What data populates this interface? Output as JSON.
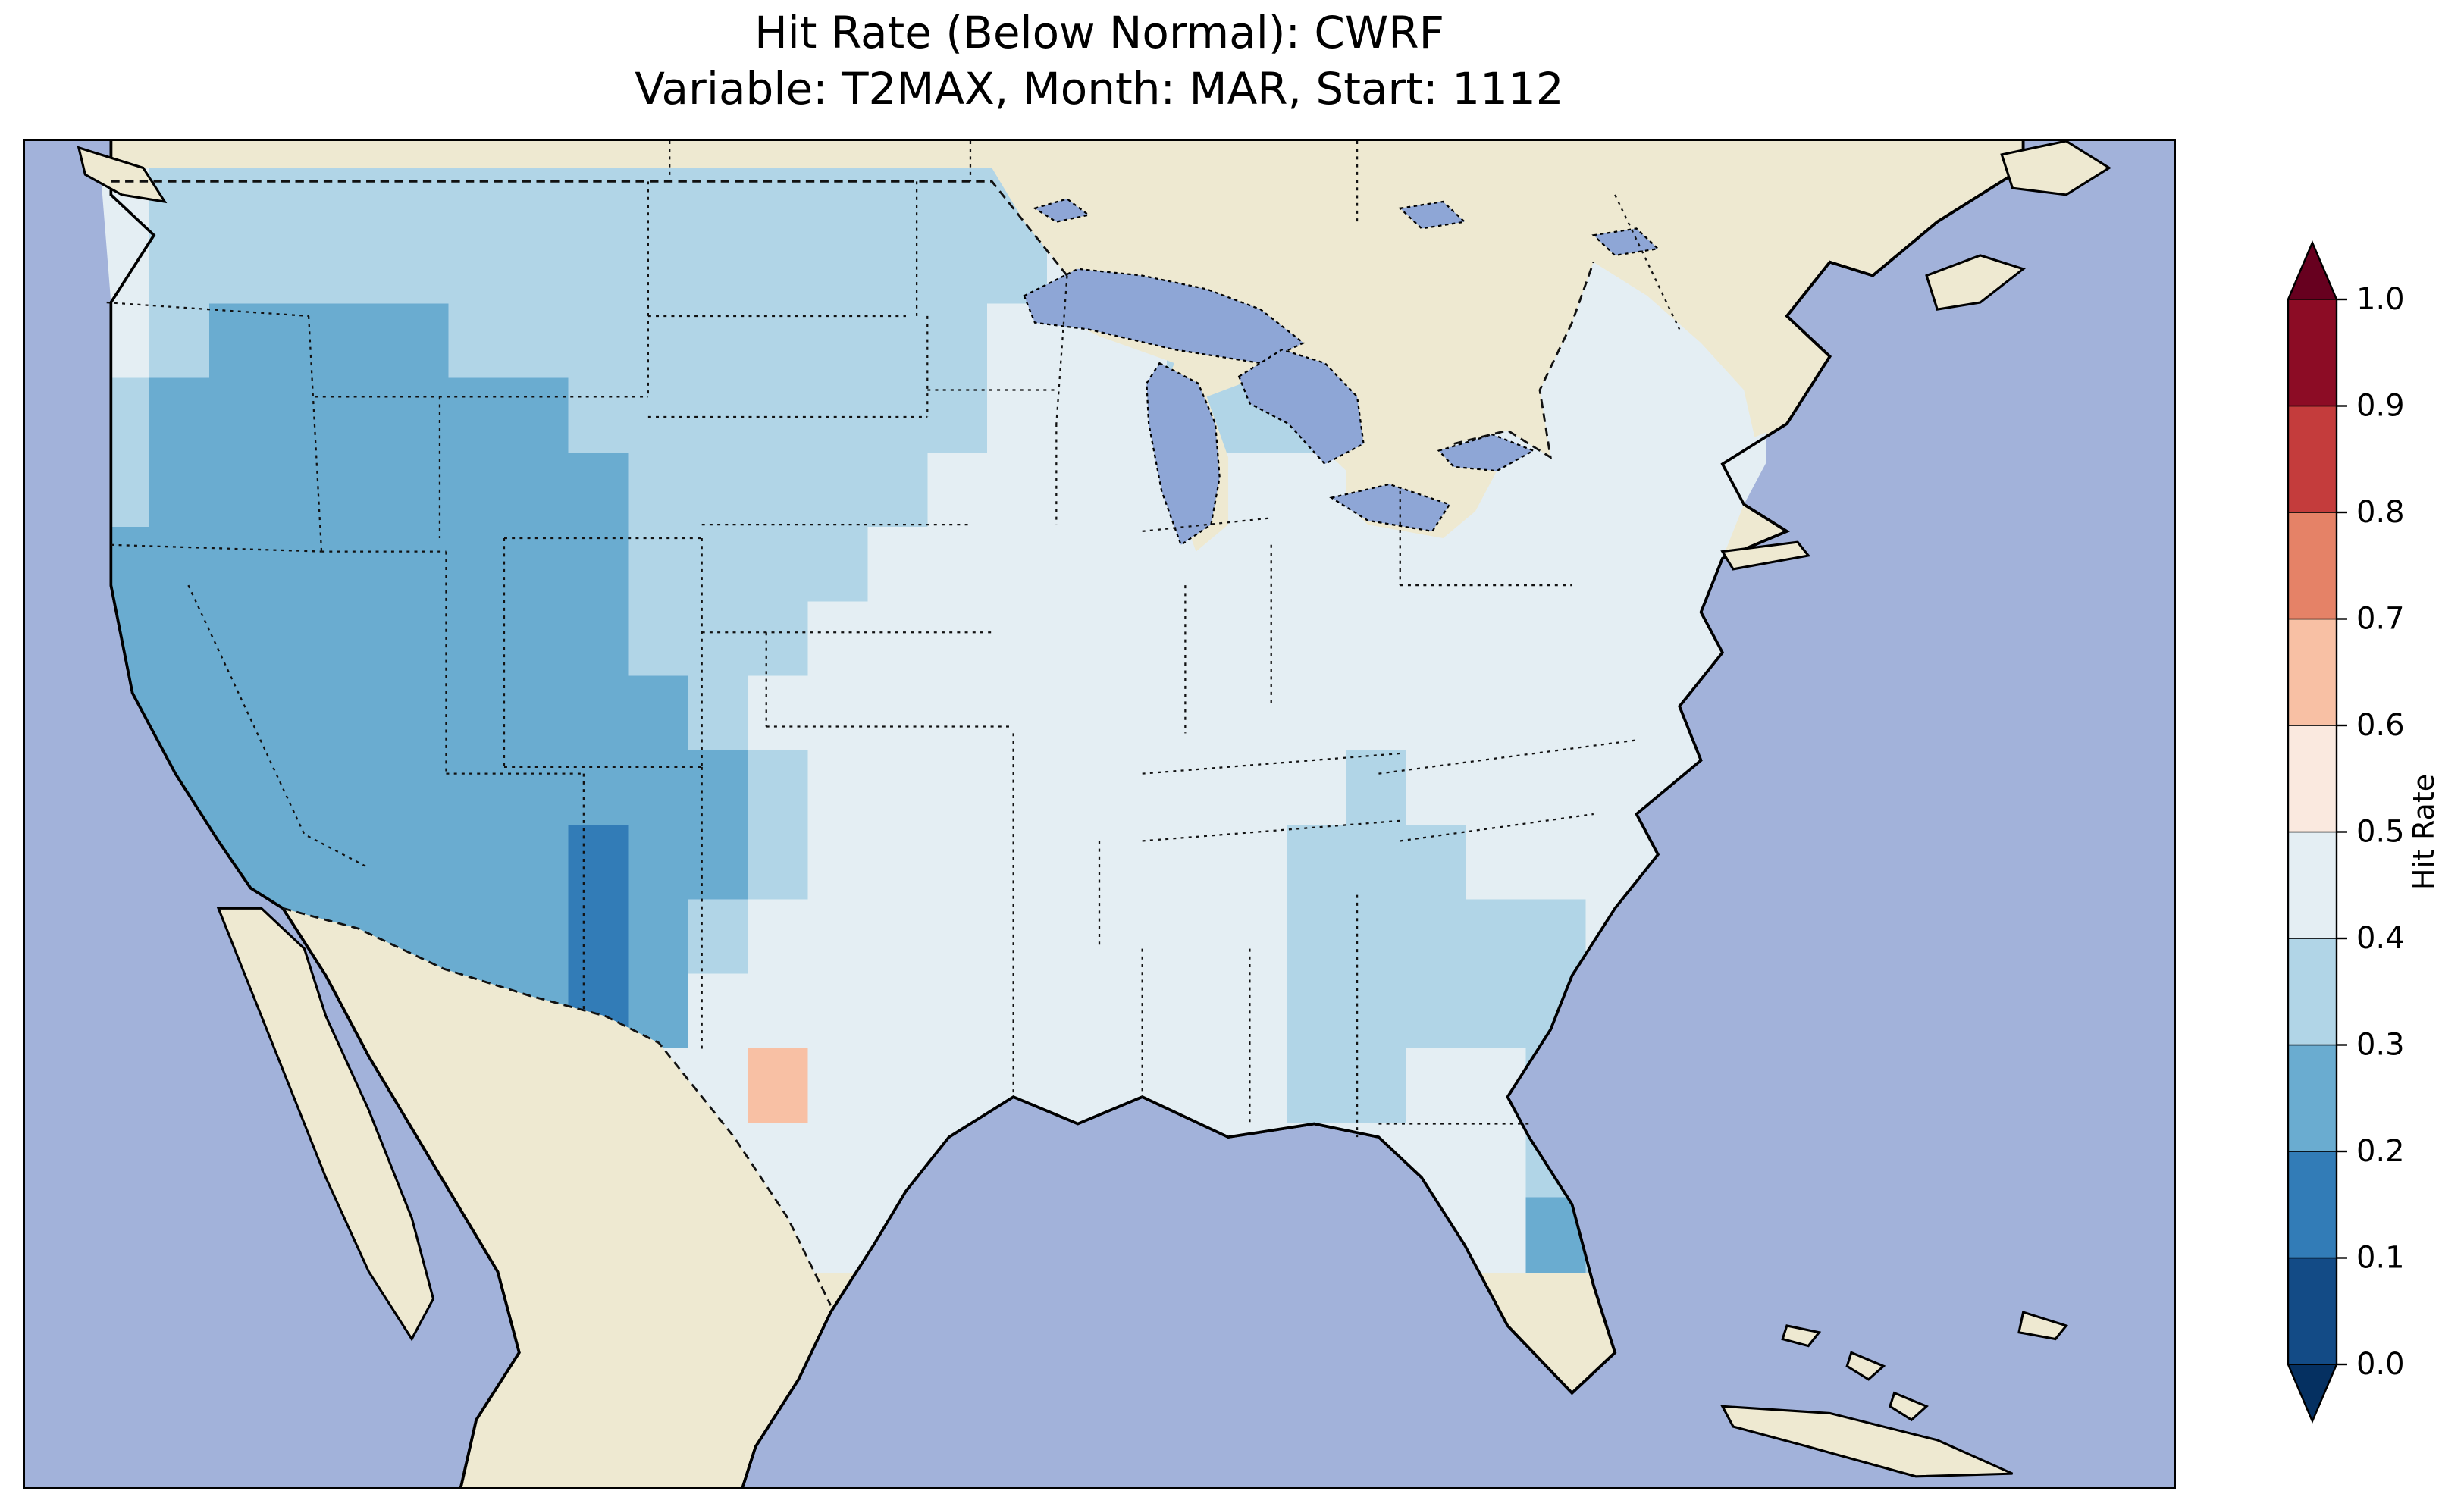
{
  "figure": {
    "title_line1": "Hit Rate (Below Normal): CWRF",
    "title_line2": "Variable: T2MAX, Month: MAR, Start: 1112"
  },
  "map": {
    "ocean_color": "#a2b2da",
    "land_color": "#eee9d1",
    "lake_color": "#8ea6d6",
    "coast_color": "#000000",
    "border_color": "#111111"
  },
  "colorbar": {
    "label": "Hit Rate",
    "tick_labels_top_to_bottom": [
      "1.0",
      "0.9",
      "0.8",
      "0.7",
      "0.6",
      "0.5",
      "0.4",
      "0.3",
      "0.2",
      "0.1",
      "0.0"
    ],
    "bin_colors_low_to_high": [
      "#134b86",
      "#327cb7",
      "#6aacd0",
      "#b1d5e7",
      "#e4eef3",
      "#fae9df",
      "#f8c0a4",
      "#e58267",
      "#c43c3c",
      "#8c0c25"
    ],
    "under_arrow_color": "#053061",
    "over_arrow_color": "#67001f"
  },
  "chart_data": {
    "type": "heatmap",
    "title": "Hit Rate (Below Normal): CWRF",
    "subtitle": "Variable: T2MAX, Month: MAR, Start: 1112",
    "region": "Continental United States (gridded)",
    "legend_label": "Hit Rate",
    "colormap": "RdBu_r, discrete 0.1 bins, extended both ends",
    "value_range": [
      0.0,
      1.0
    ],
    "bin_boundaries": [
      0.0,
      0.1,
      0.2,
      0.3,
      0.4,
      0.5,
      0.6,
      0.7,
      0.8,
      0.9,
      1.0
    ],
    "grid": {
      "cols": 28,
      "rows": 15,
      "x0_pct": 3.0,
      "y0_pct": 1.0,
      "cell_w_pct": 2.7857,
      "cell_h_pct": 5.5333,
      "values": [
        [
          0.45,
          0.35,
          0.35,
          0.35,
          0.35,
          0.35,
          0.35,
          0.35,
          0.35,
          0.35,
          0.35,
          0.35,
          0.35,
          0.35,
          0.35,
          0.35,
          0.45,
          0.45,
          0.35,
          0.35,
          0.35,
          0.45,
          0.45,
          0.45,
          0.45,
          0.45,
          0.45,
          0.45
        ],
        [
          0.45,
          0.35,
          0.35,
          0.35,
          0.35,
          0.35,
          0.35,
          0.35,
          0.35,
          0.35,
          0.35,
          0.35,
          0.35,
          0.35,
          0.35,
          0.35,
          0.45,
          0.45,
          0.35,
          0.35,
          0.35,
          0.45,
          0.45,
          0.45,
          0.45,
          0.45,
          0.45,
          0.45
        ],
        [
          0.45,
          0.35,
          0.25,
          0.25,
          0.25,
          0.25,
          0.35,
          0.35,
          0.35,
          0.35,
          0.35,
          0.35,
          0.35,
          0.35,
          0.35,
          0.45,
          0.45,
          0.45,
          0.35,
          0.35,
          0.35,
          0.45,
          0.45,
          0.45,
          0.45,
          0.45,
          0.45,
          0.45
        ],
        [
          0.35,
          0.25,
          0.25,
          0.25,
          0.25,
          0.25,
          0.25,
          0.25,
          0.35,
          0.35,
          0.35,
          0.35,
          0.35,
          0.35,
          0.35,
          0.45,
          0.45,
          0.45,
          0.35,
          0.35,
          0.35,
          0.45,
          0.45,
          0.45,
          0.45,
          0.45,
          0.45,
          0.45
        ],
        [
          0.35,
          0.25,
          0.25,
          0.25,
          0.25,
          0.25,
          0.25,
          0.25,
          0.25,
          0.35,
          0.35,
          0.35,
          0.35,
          0.35,
          0.45,
          0.45,
          0.45,
          0.45,
          0.45,
          0.45,
          0.45,
          0.45,
          0.45,
          0.45,
          0.45,
          0.45,
          0.45,
          0.45
        ],
        [
          0.25,
          0.25,
          0.25,
          0.25,
          0.25,
          0.25,
          0.25,
          0.25,
          0.25,
          0.35,
          0.35,
          0.35,
          0.35,
          0.45,
          0.45,
          0.45,
          0.45,
          0.45,
          0.45,
          0.45,
          0.45,
          0.45,
          0.45,
          0.45,
          0.45,
          0.45,
          0.45,
          0.45
        ],
        [
          0.25,
          0.25,
          0.25,
          0.25,
          0.25,
          0.25,
          0.25,
          0.25,
          0.25,
          0.35,
          0.35,
          0.35,
          0.45,
          0.45,
          0.45,
          0.45,
          0.45,
          0.45,
          0.45,
          0.45,
          0.45,
          0.45,
          0.45,
          0.45,
          0.45,
          0.45,
          0.45,
          0.45
        ],
        [
          0.25,
          0.25,
          0.25,
          0.25,
          0.25,
          0.25,
          0.25,
          0.25,
          0.25,
          0.25,
          0.35,
          0.45,
          0.45,
          0.45,
          0.45,
          0.45,
          0.45,
          0.45,
          0.45,
          0.45,
          0.45,
          0.45,
          0.45,
          0.45,
          0.45,
          0.45,
          0.45,
          0.45
        ],
        [
          0.25,
          0.25,
          0.25,
          0.25,
          0.25,
          0.25,
          0.25,
          0.25,
          0.25,
          0.25,
          0.25,
          0.35,
          0.45,
          0.45,
          0.45,
          0.45,
          0.45,
          0.45,
          0.45,
          0.45,
          0.45,
          0.35,
          0.45,
          0.45,
          0.45,
          0.45,
          0.45,
          0.45
        ],
        [
          0.25,
          0.25,
          0.25,
          0.25,
          0.25,
          0.25,
          0.25,
          0.25,
          0.15,
          0.25,
          0.25,
          0.35,
          0.45,
          0.45,
          0.45,
          0.45,
          0.45,
          0.45,
          0.45,
          0.45,
          0.35,
          0.35,
          0.35,
          0.45,
          0.45,
          0.45,
          0.45,
          0.45
        ],
        [
          0.25,
          0.25,
          0.25,
          0.25,
          0.25,
          0.25,
          0.25,
          0.25,
          0.15,
          0.25,
          0.35,
          0.45,
          0.45,
          0.45,
          0.45,
          0.45,
          0.45,
          0.45,
          0.45,
          0.45,
          0.35,
          0.35,
          0.35,
          0.35,
          0.35,
          0.45,
          0.45,
          0.45
        ],
        [
          0.25,
          0.25,
          0.25,
          0.25,
          0.25,
          0.25,
          0.25,
          0.25,
          0.15,
          0.25,
          0.45,
          0.45,
          0.45,
          0.45,
          0.45,
          0.45,
          0.45,
          0.45,
          0.45,
          0.45,
          0.35,
          0.35,
          0.35,
          0.35,
          0.35,
          0.45,
          0.45,
          0.45
        ],
        [
          0.45,
          0.45,
          0.45,
          0.45,
          0.45,
          0.45,
          0.45,
          0.45,
          0.45,
          0.45,
          0.45,
          0.62,
          0.45,
          0.45,
          0.45,
          0.45,
          0.45,
          0.45,
          0.45,
          0.45,
          0.35,
          0.35,
          0.45,
          0.45,
          0.35,
          0.35,
          0.45,
          0.45
        ],
        [
          0.45,
          0.45,
          0.45,
          0.45,
          0.45,
          0.45,
          0.45,
          0.45,
          0.45,
          0.45,
          0.45,
          0.45,
          0.45,
          0.45,
          0.45,
          0.45,
          0.45,
          0.45,
          0.45,
          0.45,
          0.45,
          0.45,
          0.45,
          0.45,
          0.35,
          0.35,
          0.45,
          0.45
        ],
        [
          0.45,
          0.45,
          0.45,
          0.45,
          0.45,
          0.45,
          0.45,
          0.45,
          0.45,
          0.45,
          0.45,
          0.45,
          0.45,
          0.45,
          0.45,
          0.45,
          0.45,
          0.45,
          0.45,
          0.45,
          0.45,
          0.45,
          0.45,
          0.45,
          0.25,
          0.35,
          0.45,
          0.45
        ]
      ]
    }
  }
}
